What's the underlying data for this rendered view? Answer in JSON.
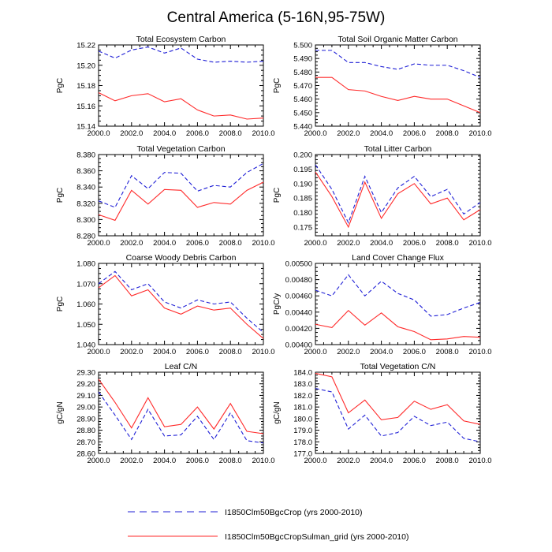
{
  "figure": {
    "title": "Central America (5-16N,95-75W)",
    "legend": [
      {
        "label": "I1850Clm50BgcCrop (yrs 2000-2010)",
        "color": "#1f1fd6",
        "dash": "dashed"
      },
      {
        "label": "I1850Clm50BgcCropSulman_grid (yrs 2000-2010)",
        "color": "#ff2a2a",
        "dash": "solid"
      }
    ]
  },
  "chart_data": [
    {
      "type": "line",
      "title": "Total Ecosystem Carbon",
      "ylabel": "PgC",
      "xlim": [
        2000,
        2010
      ],
      "ylim": [
        15.14,
        15.22
      ],
      "xticks": [
        "2000.0",
        "2002.0",
        "2004.0",
        "2006.0",
        "2008.0",
        "2010.0"
      ],
      "xtick_values": [
        2000,
        2002,
        2004,
        2006,
        2008,
        2010
      ],
      "yticks": [
        "15.14",
        "15.16",
        "15.18",
        "15.20",
        "15.22"
      ],
      "ytick_values": [
        15.14,
        15.16,
        15.18,
        15.2,
        15.22
      ],
      "x": [
        2000,
        2001,
        2002,
        2003,
        2004,
        2005,
        2006,
        2007,
        2008,
        2009,
        2010
      ],
      "series": [
        {
          "values": [
            15.214,
            15.207,
            15.215,
            15.218,
            15.212,
            15.217,
            15.206,
            15.203,
            15.204,
            15.203,
            15.204
          ]
        },
        {
          "values": [
            15.173,
            15.165,
            15.17,
            15.172,
            15.164,
            15.167,
            15.156,
            15.15,
            15.151,
            15.147,
            15.148
          ]
        }
      ]
    },
    {
      "type": "line",
      "title": "Total Soil Organic Matter Carbon",
      "ylabel": "PgC",
      "xlim": [
        2000,
        2010
      ],
      "ylim": [
        5.44,
        5.5
      ],
      "xticks": [
        "2000.0",
        "2002.0",
        "2004.0",
        "2006.0",
        "2008.0",
        "2010.0"
      ],
      "xtick_values": [
        2000,
        2002,
        2004,
        2006,
        2008,
        2010
      ],
      "yticks": [
        "5.440",
        "5.450",
        "5.460",
        "5.470",
        "5.480",
        "5.490",
        "5.500"
      ],
      "ytick_values": [
        5.44,
        5.45,
        5.46,
        5.47,
        5.48,
        5.49,
        5.5
      ],
      "x": [
        2000,
        2001,
        2002,
        2003,
        2004,
        2005,
        2006,
        2007,
        2008,
        2009,
        2010
      ],
      "series": [
        {
          "values": [
            5.496,
            5.496,
            5.487,
            5.487,
            5.484,
            5.482,
            5.486,
            5.485,
            5.485,
            5.481,
            5.476
          ]
        },
        {
          "values": [
            5.476,
            5.476,
            5.467,
            5.466,
            5.462,
            5.459,
            5.462,
            5.46,
            5.46,
            5.455,
            5.45
          ]
        }
      ]
    },
    {
      "type": "line",
      "title": "Total Vegetation Carbon",
      "ylabel": "PgC",
      "xlim": [
        2000,
        2010
      ],
      "ylim": [
        8.28,
        8.38
      ],
      "xticks": [
        "2000.0",
        "2002.0",
        "2004.0",
        "2006.0",
        "2008.0",
        "2010.0"
      ],
      "xtick_values": [
        2000,
        2002,
        2004,
        2006,
        2008,
        2010
      ],
      "yticks": [
        "8.280",
        "8.300",
        "8.320",
        "8.340",
        "8.360",
        "8.380"
      ],
      "ytick_values": [
        8.28,
        8.3,
        8.32,
        8.34,
        8.36,
        8.38
      ],
      "x": [
        2000,
        2001,
        2002,
        2003,
        2004,
        2005,
        2006,
        2007,
        2008,
        2009,
        2010
      ],
      "series": [
        {
          "values": [
            8.323,
            8.315,
            8.354,
            8.338,
            8.358,
            8.357,
            8.335,
            8.342,
            8.34,
            8.358,
            8.369
          ]
        },
        {
          "values": [
            8.306,
            8.299,
            8.336,
            8.319,
            8.337,
            8.336,
            8.315,
            8.321,
            8.319,
            8.336,
            8.346
          ]
        }
      ]
    },
    {
      "type": "line",
      "title": "Total Litter Carbon",
      "ylabel": "PgC",
      "xlim": [
        2000,
        2010
      ],
      "ylim": [
        0.172,
        0.2
      ],
      "xticks": [
        "2000.0",
        "2002.0",
        "2004.0",
        "2006.0",
        "2008.0",
        "2010.0"
      ],
      "xtick_values": [
        2000,
        2002,
        2004,
        2006,
        2008,
        2010
      ],
      "yticks": [
        "0.175",
        "0.180",
        "0.185",
        "0.190",
        "0.195",
        "0.200"
      ],
      "ytick_values": [
        0.175,
        0.18,
        0.185,
        0.19,
        0.195,
        0.2
      ],
      "x": [
        2000,
        2001,
        2002,
        2003,
        2004,
        2005,
        2006,
        2007,
        2008,
        2009,
        2010
      ],
      "series": [
        {
          "values": [
            0.1965,
            0.188,
            0.1765,
            0.1925,
            0.18,
            0.1885,
            0.1925,
            0.1855,
            0.188,
            0.1795,
            0.1835
          ]
        },
        {
          "values": [
            0.194,
            0.1855,
            0.175,
            0.1905,
            0.178,
            0.1865,
            0.19,
            0.183,
            0.185,
            0.1775,
            0.181
          ]
        }
      ]
    },
    {
      "type": "line",
      "title": "Coarse Woody Debris Carbon",
      "ylabel": "PgC",
      "xlim": [
        2000,
        2010
      ],
      "ylim": [
        1.04,
        1.08
      ],
      "xticks": [
        "2000.0",
        "2002.0",
        "2004.0",
        "2006.0",
        "2008.0",
        "2010.0"
      ],
      "xtick_values": [
        2000,
        2002,
        2004,
        2006,
        2008,
        2010
      ],
      "yticks": [
        "1.040",
        "1.050",
        "1.060",
        "1.070",
        "1.080"
      ],
      "ytick_values": [
        1.04,
        1.05,
        1.06,
        1.07,
        1.08
      ],
      "x": [
        2000,
        2001,
        2002,
        2003,
        2004,
        2005,
        2006,
        2007,
        2008,
        2009,
        2010
      ],
      "series": [
        {
          "values": [
            1.07,
            1.076,
            1.067,
            1.07,
            1.061,
            1.058,
            1.062,
            1.06,
            1.061,
            1.053,
            1.046
          ]
        },
        {
          "values": [
            1.068,
            1.074,
            1.064,
            1.067,
            1.058,
            1.055,
            1.059,
            1.057,
            1.058,
            1.05,
            1.043
          ]
        }
      ]
    },
    {
      "type": "line",
      "title": "Land Cover Change Flux",
      "ylabel": "PgC/y",
      "xlim": [
        2000,
        2010
      ],
      "ylim": [
        0.004,
        0.005
      ],
      "xticks": [
        "2000.0",
        "2002.0",
        "2004.0",
        "2006.0",
        "2008.0",
        "2010.0"
      ],
      "xtick_values": [
        2000,
        2002,
        2004,
        2006,
        2008,
        2010
      ],
      "yticks": [
        "0.00400",
        "0.00420",
        "0.00440",
        "0.00460",
        "0.00480",
        "0.00500"
      ],
      "ytick_values": [
        0.004,
        0.0042,
        0.0044,
        0.0046,
        0.0048,
        0.005
      ],
      "x": [
        2000,
        2001,
        2002,
        2003,
        2004,
        2005,
        2006,
        2007,
        2008,
        2009,
        2010
      ],
      "series": [
        {
          "values": [
            0.00467,
            0.0046,
            0.00486,
            0.0046,
            0.00478,
            0.00463,
            0.00455,
            0.00435,
            0.00437,
            0.00445,
            0.00452
          ]
        },
        {
          "values": [
            0.00425,
            0.00421,
            0.00442,
            0.00424,
            0.00439,
            0.00422,
            0.00416,
            0.00406,
            0.00407,
            0.0041,
            0.00409
          ]
        }
      ]
    },
    {
      "type": "line",
      "title": "Leaf C/N",
      "ylabel": "gC/gN",
      "xlim": [
        2000,
        2010
      ],
      "ylim": [
        28.6,
        29.3
      ],
      "xticks": [
        "2000.0",
        "2002.0",
        "2004.0",
        "2006.0",
        "2008.0",
        "2010.0"
      ],
      "xtick_values": [
        2000,
        2002,
        2004,
        2006,
        2008,
        2010
      ],
      "yticks": [
        "28.60",
        "28.70",
        "28.80",
        "28.90",
        "29.00",
        "29.10",
        "29.20",
        "29.30"
      ],
      "ytick_values": [
        28.6,
        28.7,
        28.8,
        28.9,
        29.0,
        29.1,
        29.2,
        29.3
      ],
      "x": [
        2000,
        2001,
        2002,
        2003,
        2004,
        2005,
        2006,
        2007,
        2008,
        2009,
        2010
      ],
      "series": [
        {
          "values": [
            29.13,
            28.93,
            28.72,
            28.98,
            28.75,
            28.76,
            28.92,
            28.72,
            28.95,
            28.71,
            28.69
          ]
        },
        {
          "values": [
            29.24,
            29.04,
            28.82,
            29.08,
            28.83,
            28.85,
            29.0,
            28.81,
            29.03,
            28.79,
            28.77
          ]
        }
      ]
    },
    {
      "type": "line",
      "title": "Total Vegetation C/N",
      "ylabel": "gC/gN",
      "xlim": [
        2000,
        2010
      ],
      "ylim": [
        177.0,
        184.0
      ],
      "xticks": [
        "2000.0",
        "2002.0",
        "2004.0",
        "2006.0",
        "2008.0",
        "2010.0"
      ],
      "xtick_values": [
        2000,
        2002,
        2004,
        2006,
        2008,
        2010
      ],
      "yticks": [
        "177.0",
        "178.0",
        "179.0",
        "180.0",
        "181.0",
        "182.0",
        "183.0",
        "184.0"
      ],
      "ytick_values": [
        177,
        178,
        179,
        180,
        181,
        182,
        183,
        184
      ],
      "x": [
        2000,
        2001,
        2002,
        2003,
        2004,
        2005,
        2006,
        2007,
        2008,
        2009,
        2010
      ],
      "series": [
        {
          "values": [
            182.6,
            182.3,
            179.1,
            180.3,
            178.5,
            178.8,
            180.2,
            179.4,
            179.7,
            178.3,
            178.0
          ]
        },
        {
          "values": [
            183.9,
            183.6,
            180.5,
            181.6,
            179.9,
            180.1,
            181.5,
            180.8,
            181.2,
            179.8,
            179.5
          ]
        }
      ]
    }
  ]
}
